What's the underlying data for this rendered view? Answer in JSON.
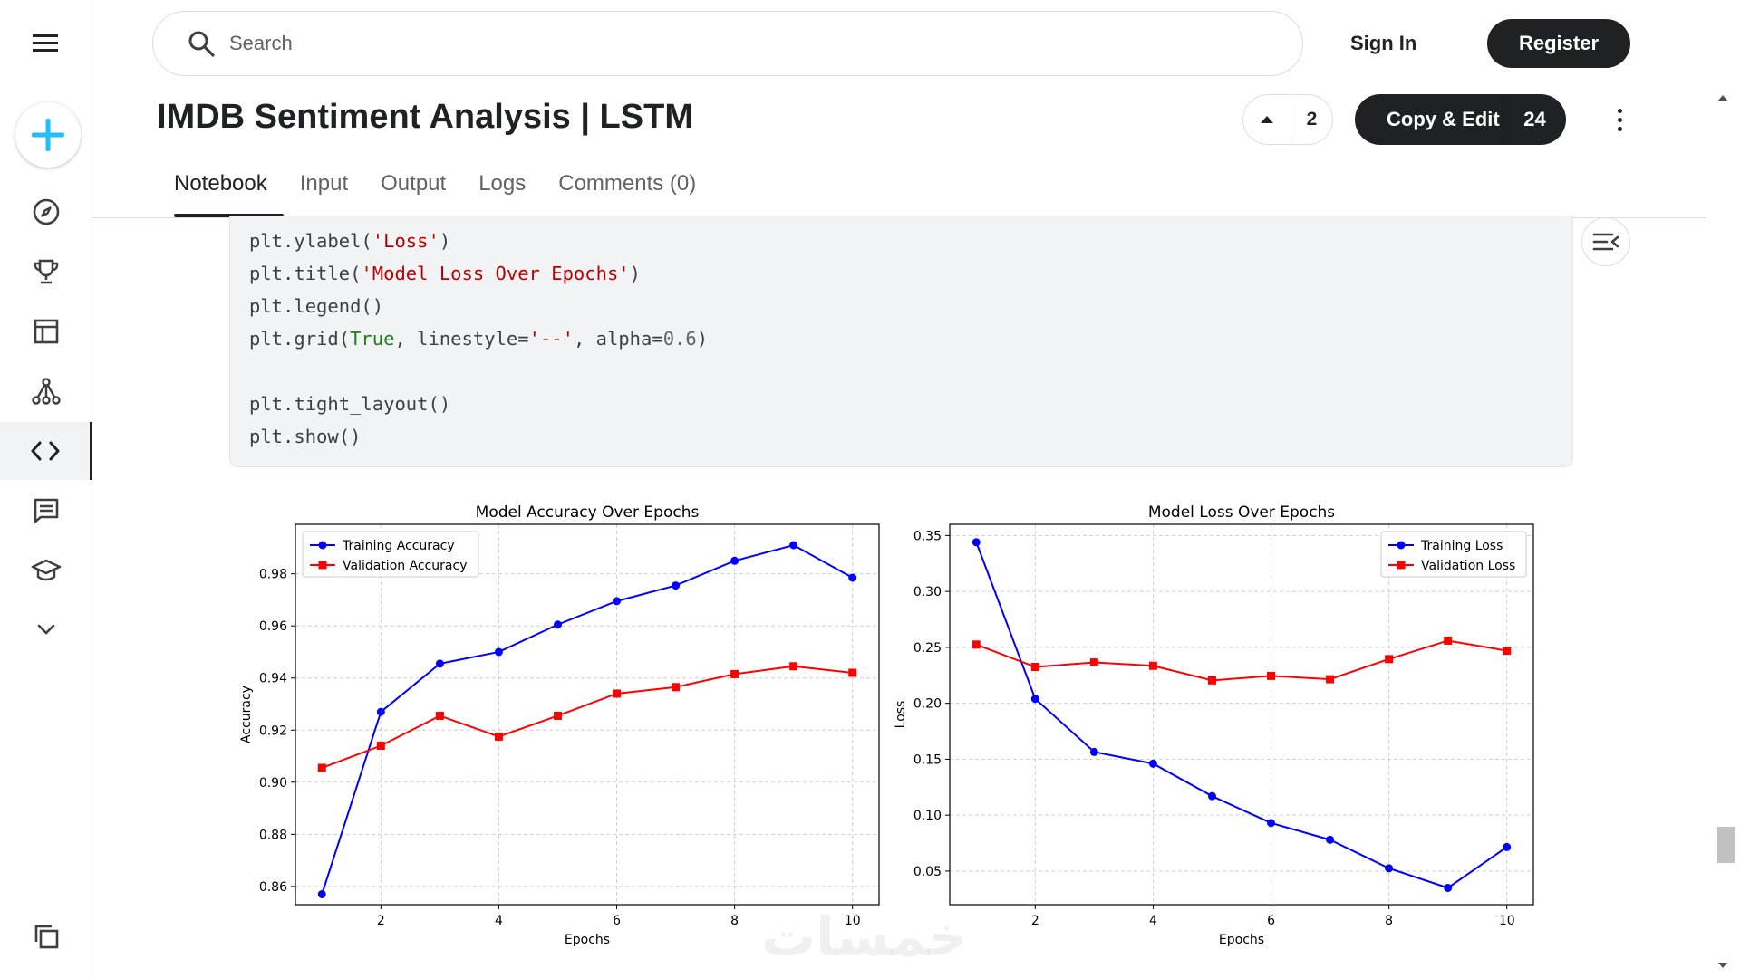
{
  "search": {
    "placeholder": "Search"
  },
  "auth": {
    "sign_in": "Sign In",
    "register": "Register"
  },
  "notebook": {
    "title": "IMDB Sentiment Analysis | LSTM",
    "upvotes": "2",
    "copy_edit_label": "Copy & Edit",
    "copy_edit_count": "24"
  },
  "tabs": [
    "Notebook",
    "Input",
    "Output",
    "Logs",
    "Comments (0)"
  ],
  "active_tab": "Notebook",
  "rail": {
    "icons": [
      "menu-icon",
      "plus-icon",
      "compass-icon",
      "trophy-icon",
      "table-icon",
      "models-icon",
      "code-icon",
      "discussion-icon",
      "learn-icon",
      "chevron-down-icon",
      "copy-icon"
    ],
    "active": "code-icon"
  },
  "code": {
    "lines": [
      [
        {
          "t": "plt.ylabel(",
          "c": ""
        },
        {
          "t": "'Loss'",
          "c": "s"
        },
        {
          "t": ")",
          "c": ""
        }
      ],
      [
        {
          "t": "plt.title(",
          "c": ""
        },
        {
          "t": "'Model Loss Over Epochs'",
          "c": "s"
        },
        {
          "t": ")",
          "c": ""
        }
      ],
      [
        {
          "t": "plt.legend()",
          "c": ""
        }
      ],
      [
        {
          "t": "plt.grid(",
          "c": ""
        },
        {
          "t": "True",
          "c": "k"
        },
        {
          "t": ", linestyle=",
          "c": ""
        },
        {
          "t": "'--'",
          "c": "s"
        },
        {
          "t": ", alpha=",
          "c": ""
        },
        {
          "t": "0.6",
          "c": "n"
        },
        {
          "t": ")",
          "c": ""
        }
      ],
      [
        {
          "t": "",
          "c": ""
        }
      ],
      [
        {
          "t": "plt.tight_layout()",
          "c": ""
        }
      ],
      [
        {
          "t": "plt.show()",
          "c": ""
        }
      ]
    ]
  },
  "watermark": "خمسات",
  "colors": {
    "train": "#0000ff",
    "val": "#ff0000",
    "dark": "#202124",
    "accent": "#20beff"
  },
  "chart_data": [
    {
      "type": "line",
      "title": "Model Accuracy Over Epochs",
      "xlabel": "Epochs",
      "ylabel": "Accuracy",
      "x": [
        1,
        2,
        3,
        4,
        5,
        6,
        7,
        8,
        9,
        10
      ],
      "xticks": [
        2,
        4,
        6,
        8,
        10
      ],
      "yticks": [
        0.86,
        0.88,
        0.9,
        0.92,
        0.94,
        0.96,
        0.98
      ],
      "ytick_labels": [
        "0.86",
        "0.88",
        "0.90",
        "0.92",
        "0.94",
        "0.96",
        "0.98"
      ],
      "ylim": [
        0.853,
        0.999
      ],
      "xlim": [
        0.55,
        10.45
      ],
      "grid": true,
      "legend": "top-left",
      "series": [
        {
          "name": "Training Accuracy",
          "marker": "circle",
          "color": "#0000ff",
          "values": [
            0.857,
            0.927,
            0.9455,
            0.95,
            0.9605,
            0.9695,
            0.9755,
            0.985,
            0.991,
            0.9785
          ]
        },
        {
          "name": "Validation Accuracy",
          "marker": "square",
          "color": "#ff0000",
          "values": [
            0.9055,
            0.914,
            0.9255,
            0.9175,
            0.9255,
            0.934,
            0.9365,
            0.9415,
            0.9445,
            0.942
          ]
        }
      ]
    },
    {
      "type": "line",
      "title": "Model Loss Over Epochs",
      "xlabel": "Epochs",
      "ylabel": "Loss",
      "x": [
        1,
        2,
        3,
        4,
        5,
        6,
        7,
        8,
        9,
        10
      ],
      "xticks": [
        2,
        4,
        6,
        8,
        10
      ],
      "yticks": [
        0.05,
        0.1,
        0.15,
        0.2,
        0.25,
        0.3,
        0.35
      ],
      "ytick_labels": [
        "0.05",
        "0.10",
        "0.15",
        "0.20",
        "0.25",
        "0.30",
        "0.35"
      ],
      "ylim": [
        0.02,
        0.36
      ],
      "xlim": [
        0.55,
        10.45
      ],
      "grid": true,
      "legend": "top-right",
      "series": [
        {
          "name": "Training Loss",
          "marker": "circle",
          "color": "#0000ff",
          "values": [
            0.344,
            0.204,
            0.1565,
            0.146,
            0.117,
            0.093,
            0.078,
            0.0525,
            0.035,
            0.0715
          ]
        },
        {
          "name": "Validation Loss",
          "marker": "square",
          "color": "#ff0000",
          "values": [
            0.2525,
            0.2325,
            0.2365,
            0.2335,
            0.2205,
            0.2245,
            0.2215,
            0.2395,
            0.256,
            0.247
          ]
        }
      ]
    }
  ]
}
